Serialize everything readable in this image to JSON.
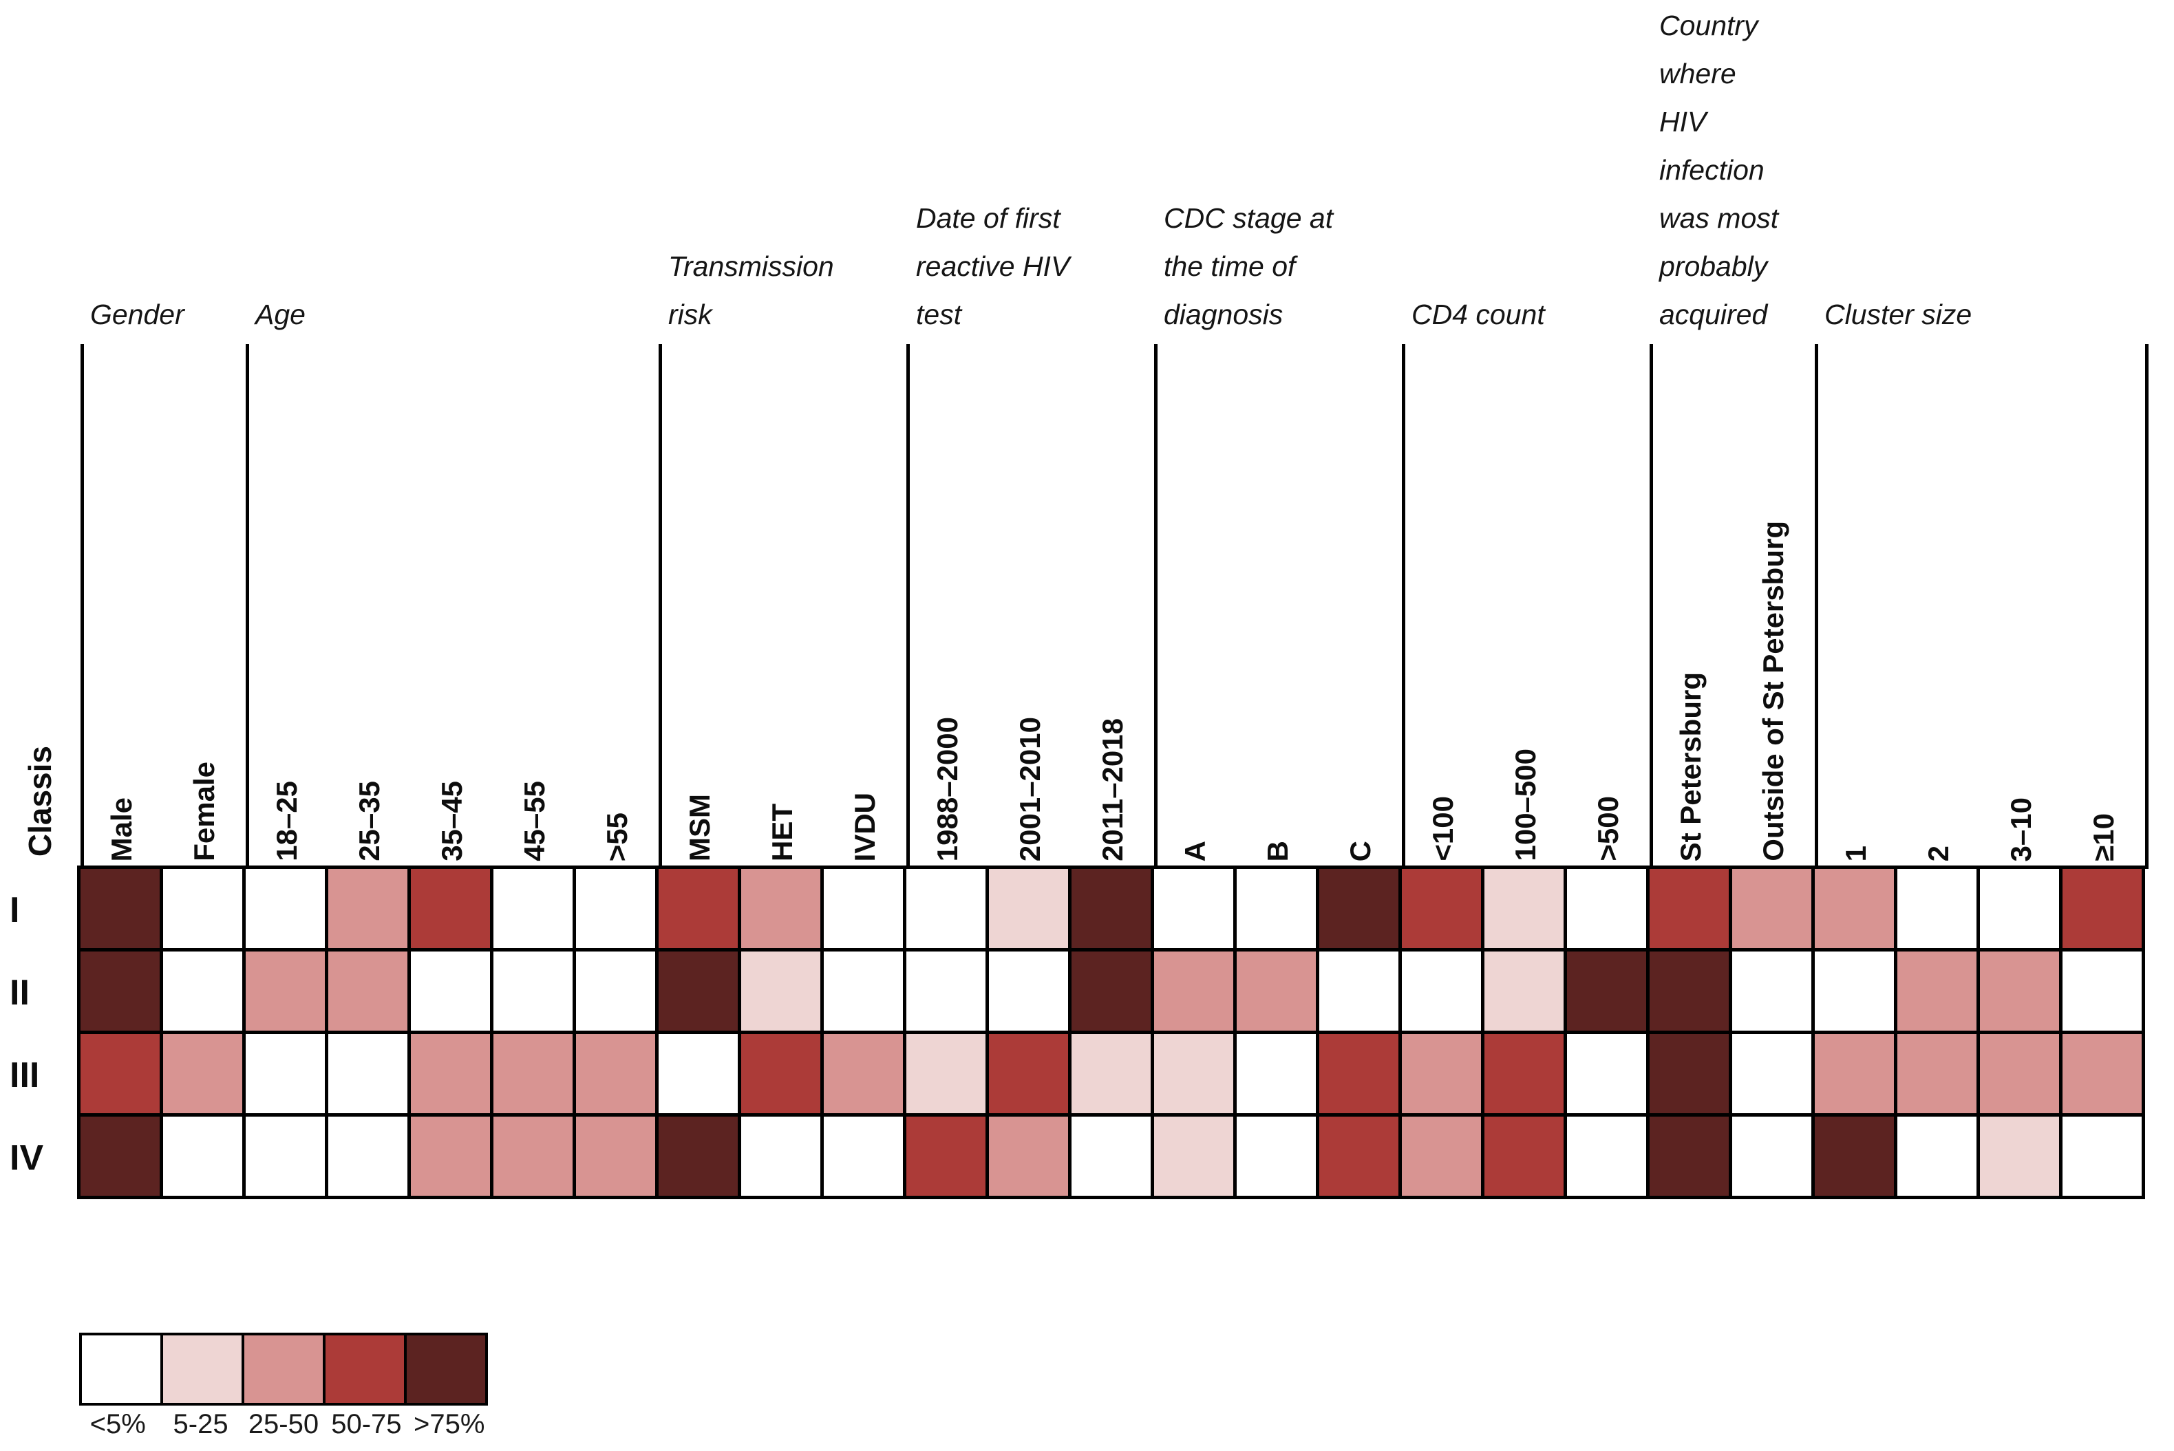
{
  "chart_data": {
    "type": "heatmap",
    "corner_label": "Classis",
    "row_labels": [
      "I",
      "II",
      "III",
      "IV"
    ],
    "column_groups": [
      {
        "label": "Gender",
        "lines": [
          "Gender"
        ],
        "span": 2
      },
      {
        "label": "Age",
        "lines": [
          "Age"
        ],
        "span": 5
      },
      {
        "label": "Transmission risk",
        "lines": [
          "Transmission",
          "risk"
        ],
        "span": 3
      },
      {
        "label": "Date of first reactive HIV test",
        "lines": [
          "Date of first",
          "reactive HIV",
          "test"
        ],
        "span": 3
      },
      {
        "label": "CDC stage at the time of diagnosis",
        "lines": [
          "CDC stage at",
          "the time of",
          "diagnosis"
        ],
        "span": 3
      },
      {
        "label": "CD4 count",
        "lines": [
          "CD4 count"
        ],
        "span": 3
      },
      {
        "label": "Country where HIV infection was most probably acquired",
        "lines": [
          "Country",
          "where",
          "HIV",
          "infection",
          "was most",
          "probably",
          "acquired"
        ],
        "span": 2
      },
      {
        "label": "Cluster size",
        "lines": [
          "Cluster size"
        ],
        "span": 4
      }
    ],
    "columns": [
      "Male",
      "Female",
      "18–25",
      "25–35",
      "35–45",
      "45–55",
      ">55",
      "MSM",
      "HET",
      "IVDU",
      "1988–2000",
      "2001–2010",
      "2011–2018",
      "A",
      "B",
      "C",
      "<100",
      "100–500",
      ">500",
      "St Petersburg",
      "Outside of St Petersburg",
      "1",
      "2",
      "3–10",
      "≥10"
    ],
    "value_scale_note": "0=<5%, 1=5-25%, 2=25-50%, 3=50-75%, 4=>75%",
    "values": [
      [
        4,
        0,
        0,
        2,
        3,
        0,
        0,
        3,
        2,
        0,
        0,
        1,
        4,
        0,
        0,
        4,
        3,
        1,
        0,
        3,
        2,
        2,
        0,
        0,
        3
      ],
      [
        4,
        0,
        2,
        2,
        0,
        0,
        0,
        4,
        1,
        0,
        0,
        0,
        4,
        2,
        2,
        0,
        0,
        1,
        4,
        4,
        0,
        0,
        2,
        2,
        0
      ],
      [
        3,
        2,
        0,
        0,
        2,
        2,
        2,
        0,
        3,
        2,
        1,
        3,
        1,
        1,
        0,
        3,
        2,
        3,
        0,
        4,
        0,
        2,
        2,
        2,
        2
      ],
      [
        4,
        0,
        0,
        0,
        2,
        2,
        2,
        4,
        0,
        0,
        3,
        2,
        0,
        1,
        0,
        3,
        2,
        3,
        0,
        4,
        0,
        4,
        0,
        1,
        0
      ]
    ],
    "legend": {
      "labels": [
        "<5%",
        "5-25",
        "25-50",
        "50-75",
        ">75%"
      ]
    },
    "palette": [
      "#FFFFFF",
      "#EED5D3",
      "#D89492",
      "#AC3B38",
      "#5C2321"
    ],
    "colors": {
      "grid_line": "#000000",
      "text": "#111111",
      "background": "#FFFFFF"
    }
  }
}
